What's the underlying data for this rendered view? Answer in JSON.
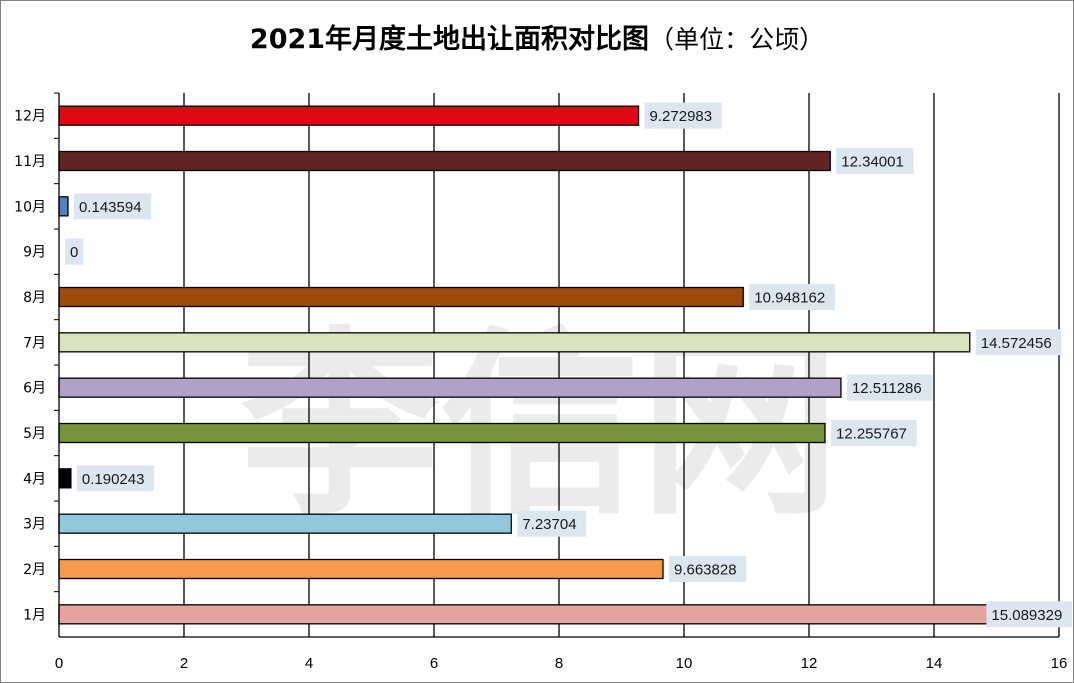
{
  "chart_data": {
    "type": "bar",
    "orientation": "horizontal",
    "title": "2021年月度土地出让面积对比图",
    "subtitle": "（单位：公顷）",
    "watermark": "李信网",
    "categories": [
      "1月",
      "2月",
      "3月",
      "4月",
      "5月",
      "6月",
      "7月",
      "8月",
      "9月",
      "10月",
      "11月",
      "12月"
    ],
    "values": [
      15.089329,
      9.663828,
      7.23704,
      0.190243,
      12.255767,
      12.511286,
      14.572456,
      10.948162,
      0,
      0.143594,
      12.34001,
      9.272983
    ],
    "value_labels": [
      "15.089329",
      "9.663828",
      "7.23704",
      "0.190243",
      "12.255767",
      "12.511286",
      "14.572456",
      "10.948162",
      "0",
      "0.143594",
      "12.34001",
      "9.272983"
    ],
    "colors": [
      "#e6a1a1",
      "#f79a4c",
      "#91c9dc",
      "#000000",
      "#77933c",
      "#b1a0c7",
      "#d7e4bd",
      "#9e4a0a",
      "#4f81bd",
      "#4f81bd",
      "#632523",
      "#e30613"
    ],
    "xlim": [
      0,
      16
    ],
    "xticks": [
      0,
      2,
      4,
      6,
      8,
      10,
      12,
      14,
      16
    ],
    "xtick_labels": [
      "0",
      "2",
      "4",
      "6",
      "8",
      "10",
      "12",
      "14",
      "16"
    ],
    "grid": "vertical",
    "legend": "none"
  }
}
